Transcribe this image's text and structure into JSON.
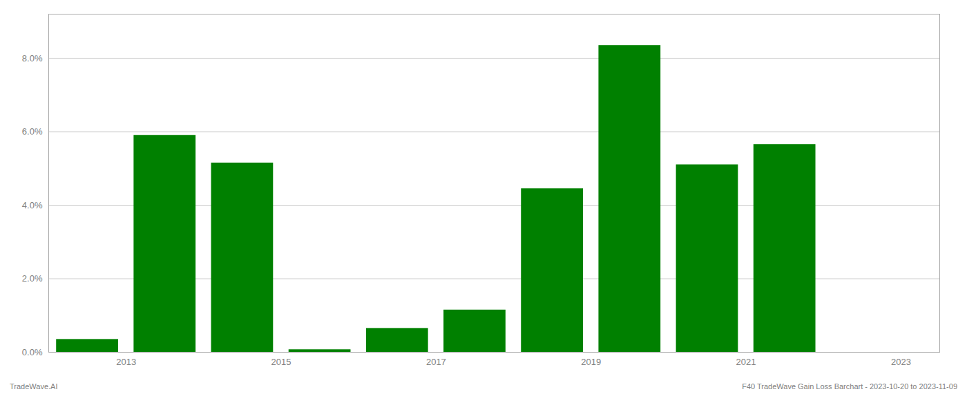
{
  "chart_data": {
    "type": "bar",
    "title": "F40 TradeWave Gain Loss Barchart - 2023-10-20 to 2023-11-09",
    "annotations": [
      "TradeWave.AI"
    ],
    "x": [
      2012.5,
      2013.5,
      2014.5,
      2015.5,
      2016.5,
      2017.5,
      2018.5,
      2019.5,
      2020.5,
      2021.5,
      2022.5
    ],
    "values": [
      0.0035,
      0.059,
      0.0515,
      0.0007,
      0.0065,
      0.0115,
      0.0445,
      0.0835,
      0.051,
      0.0565,
      0.0
    ],
    "color": "#008000",
    "xlim": [
      2012.0,
      2023.5
    ],
    "xticks": [
      2013,
      2015,
      2017,
      2019,
      2021,
      2023
    ],
    "ylim": [
      0.0,
      0.092
    ],
    "yticks": [
      {
        "value": 0.0,
        "label": "0.0%"
      },
      {
        "value": 0.02,
        "label": "2.0%"
      },
      {
        "value": 0.04,
        "label": "4.0%"
      },
      {
        "value": 0.06,
        "label": "6.0%"
      },
      {
        "value": 0.08,
        "label": "8.0%"
      }
    ],
    "grid": true
  }
}
